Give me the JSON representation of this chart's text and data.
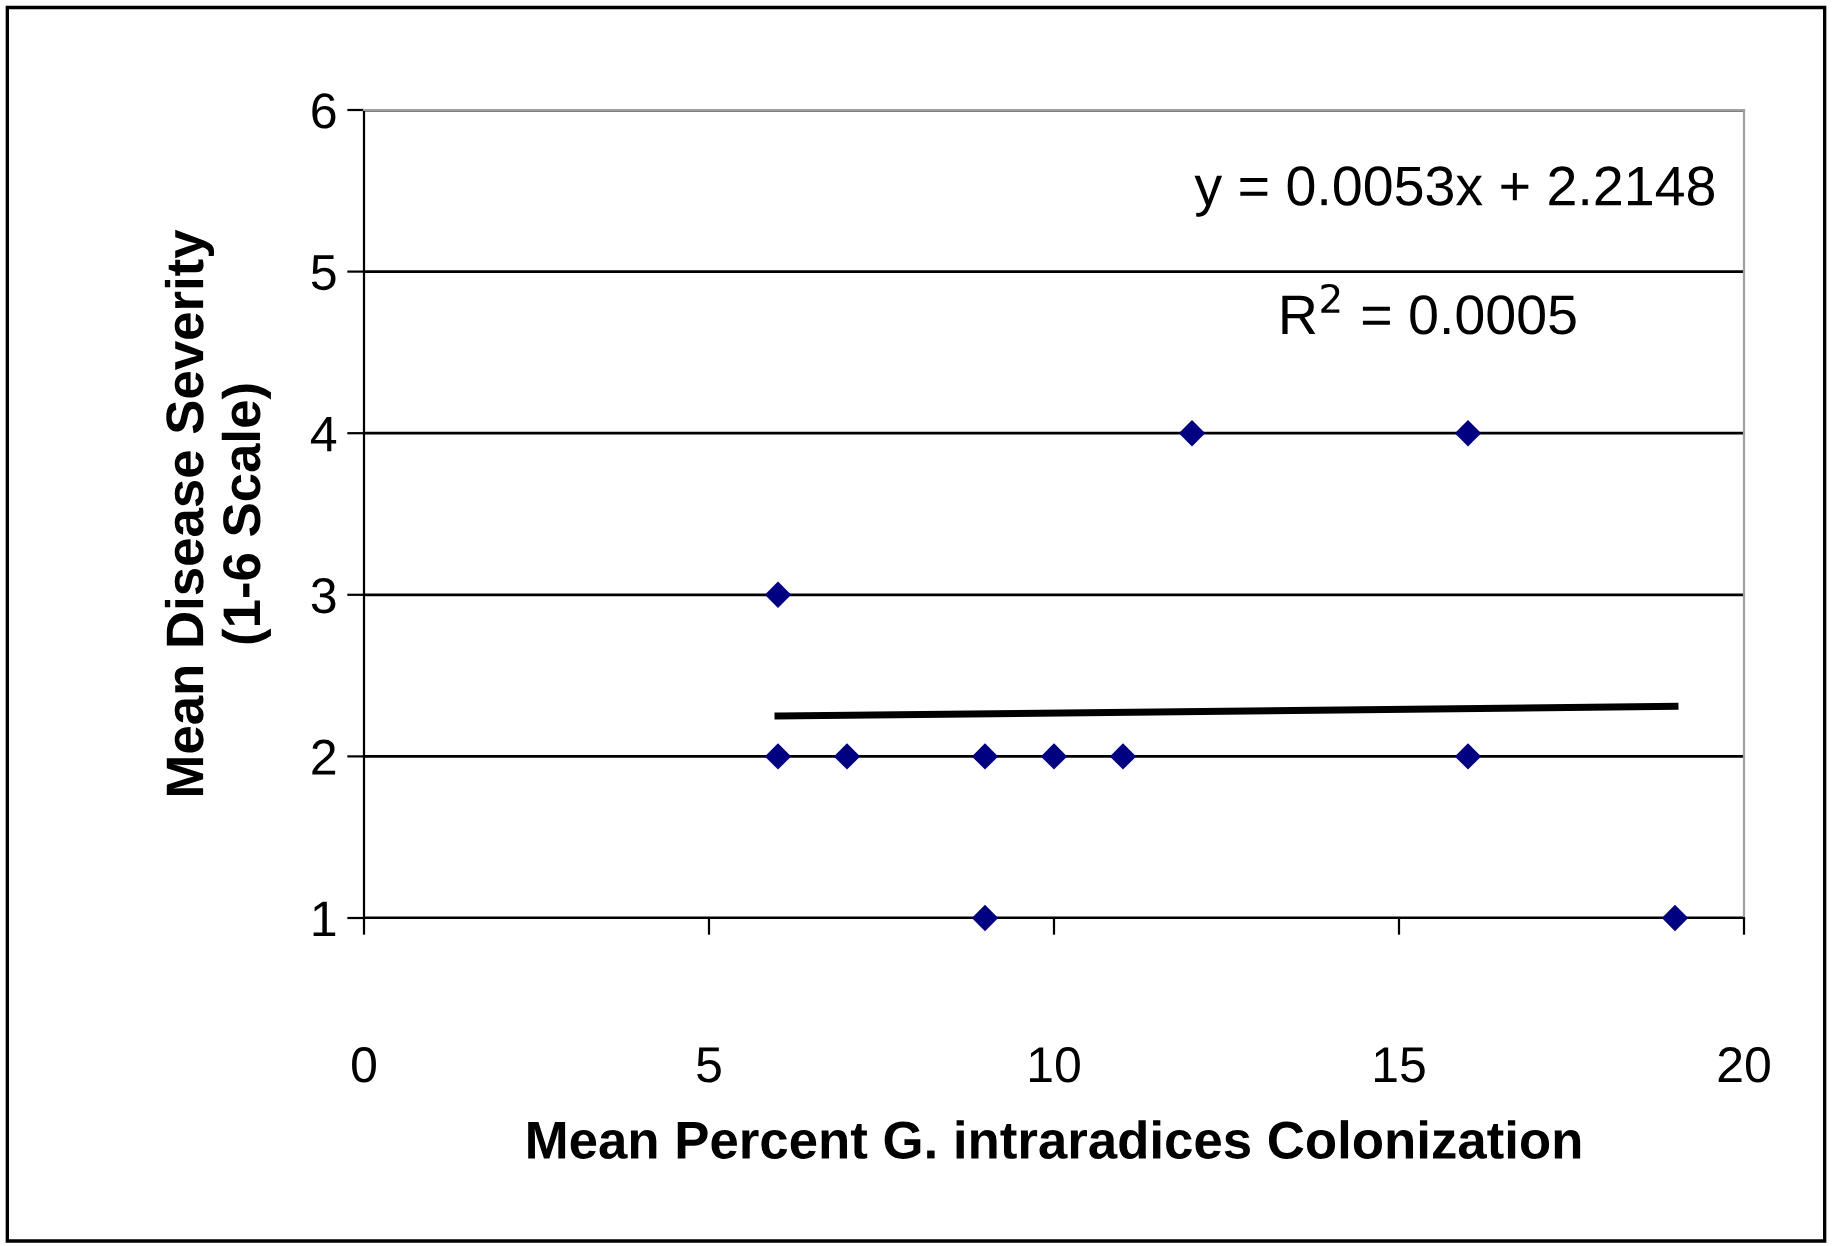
{
  "chart_data": {
    "type": "scatter",
    "xlabel": "Mean Percent G. intraradices Colonization",
    "ylabel": "Mean Disease Severity\n(1-6 Scale)",
    "series": [
      {
        "color": "#000080",
        "marker": "diamond",
        "x": [
          6,
          6,
          7,
          9,
          9,
          10,
          11,
          12,
          16,
          16,
          19
        ],
        "values": [
          3,
          2,
          2,
          2,
          1,
          2,
          2,
          4,
          4,
          2,
          1
        ]
      },
      {
        "type": "line",
        "color": "#000000",
        "x": [
          6,
          19
        ],
        "values": [
          2.25,
          2.31
        ]
      }
    ],
    "annotations": [
      "y = 0.0053x + 2.2148",
      "R$^{2}$ = 0.0005"
    ],
    "xlim": [
      0,
      20
    ],
    "xticks": [
      0,
      5,
      10,
      15,
      20
    ],
    "ylim": [
      1,
      6
    ],
    "yticks": [
      1,
      2,
      3,
      4,
      5,
      6
    ],
    "grid": "y"
  }
}
